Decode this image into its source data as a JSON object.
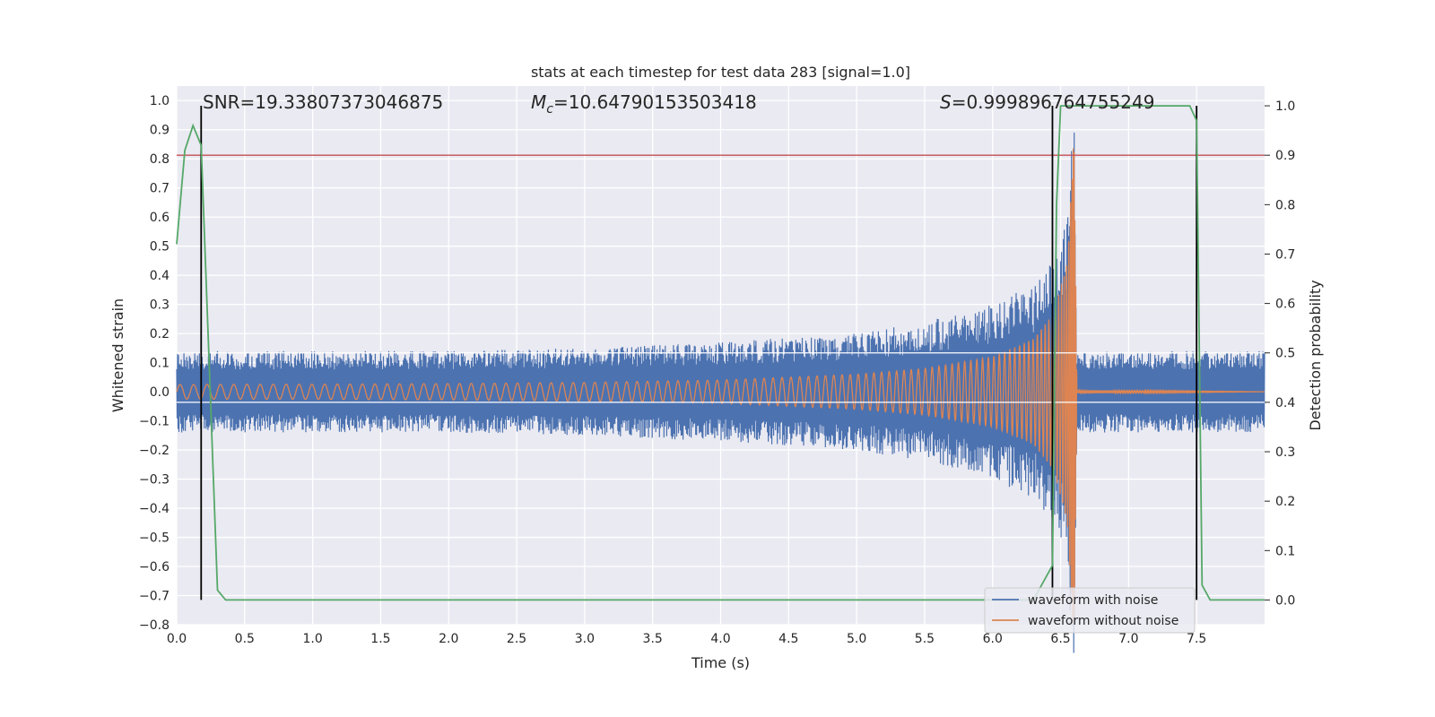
{
  "chart_data": {
    "type": "line",
    "title": "stats at each timestep for test data 283 [signal=1.0]",
    "xlabel": "Time (s)",
    "ylabel": "Whitened strain",
    "ylabel_right": "Detection probability",
    "xlim": [
      0,
      8
    ],
    "ylim": [
      -0.8,
      1.05
    ],
    "ylim_right": [
      -0.05,
      1.04
    ],
    "xticks": [
      "0.0",
      "0.5",
      "1.0",
      "1.5",
      "2.0",
      "2.5",
      "3.0",
      "3.5",
      "4.0",
      "4.5",
      "5.0",
      "5.5",
      "6.0",
      "6.5",
      "7.0",
      "7.5"
    ],
    "xtick_values": [
      0,
      0.5,
      1,
      1.5,
      2,
      2.5,
      3,
      3.5,
      4,
      4.5,
      5,
      5.5,
      6,
      6.5,
      7,
      7.5
    ],
    "yticks": [
      "1.0",
      "0.9",
      "0.8",
      "0.7",
      "0.6",
      "0.5",
      "0.4",
      "0.3",
      "0.2",
      "0.1",
      "0.0",
      "−0.1",
      "−0.2",
      "−0.3",
      "−0.4",
      "−0.5",
      "−0.6",
      "−0.7",
      "−0.8"
    ],
    "ytick_values": [
      1.0,
      0.9,
      0.8,
      0.7,
      0.6,
      0.5,
      0.4,
      0.3,
      0.2,
      0.1,
      0.0,
      -0.1,
      -0.2,
      -0.3,
      -0.4,
      -0.5,
      -0.6,
      -0.7,
      -0.8
    ],
    "yticks_right": [
      "1.0",
      "0.9",
      "0.8",
      "0.7",
      "0.6",
      "0.5",
      "0.4",
      "0.3",
      "0.2",
      "0.1",
      "0.0"
    ],
    "ytick_right_values": [
      1.0,
      0.9,
      0.8,
      0.7,
      0.6,
      0.5,
      0.4,
      0.3,
      0.2,
      0.1,
      0.0
    ],
    "grid": true,
    "background": "#eaeaf2",
    "annotations": {
      "snr": "SNR=19.33807373046875",
      "mc_symbol": "M",
      "mc_subscript": "c",
      "mc_value": "=10.64790153503418",
      "s_symbol": "S",
      "s_value": "=0.999896764755249"
    },
    "series": [
      {
        "name": "waveform with noise",
        "color": "#4c72b0",
        "description_envelope": {
          "x": [
            0,
            1,
            2,
            3,
            4,
            5,
            5.5,
            6.0,
            6.3,
            6.45,
            6.55,
            6.6,
            6.62,
            8
          ],
          "amplitude": [
            0.14,
            0.14,
            0.14,
            0.15,
            0.17,
            0.2,
            0.24,
            0.3,
            0.37,
            0.45,
            0.62,
            1.0,
            0.14,
            0.14
          ]
        }
      },
      {
        "name": "waveform without noise",
        "color": "#dd8452",
        "description_envelope": {
          "x": [
            0,
            1,
            2,
            3,
            4,
            5,
            5.5,
            6.0,
            6.3,
            6.45,
            6.55,
            6.6,
            6.62,
            8
          ],
          "amplitude": [
            0.025,
            0.026,
            0.028,
            0.032,
            0.04,
            0.06,
            0.08,
            0.12,
            0.18,
            0.27,
            0.45,
            0.9,
            0.005,
            0.0
          ]
        }
      },
      {
        "name": "",
        "color": "#55a868",
        "axis": "right",
        "x": [
          0,
          0.06,
          0.12,
          0.18,
          0.3,
          0.36,
          0.42,
          6.0,
          6.3,
          6.44,
          6.47,
          6.5,
          6.52,
          7.0,
          7.45,
          7.5,
          7.54,
          7.6,
          8.0
        ],
        "y": [
          0.72,
          0.91,
          0.96,
          0.92,
          0.02,
          0.0,
          0.0,
          0.0,
          0.0,
          0.07,
          0.8,
          1.0,
          1.0,
          1.0,
          1.0,
          0.97,
          0.03,
          0.0,
          0.0
        ]
      }
    ],
    "threshold_right": 0.9,
    "threshold_color": "#c44e52",
    "vertical_markers_x": [
      0.18,
      6.44,
      7.5
    ],
    "horizontal_white_lines_right": [
      0.5,
      0.4
    ],
    "legend": {
      "position": "lower right",
      "entries": [
        "waveform with noise",
        "waveform without noise"
      ]
    }
  }
}
